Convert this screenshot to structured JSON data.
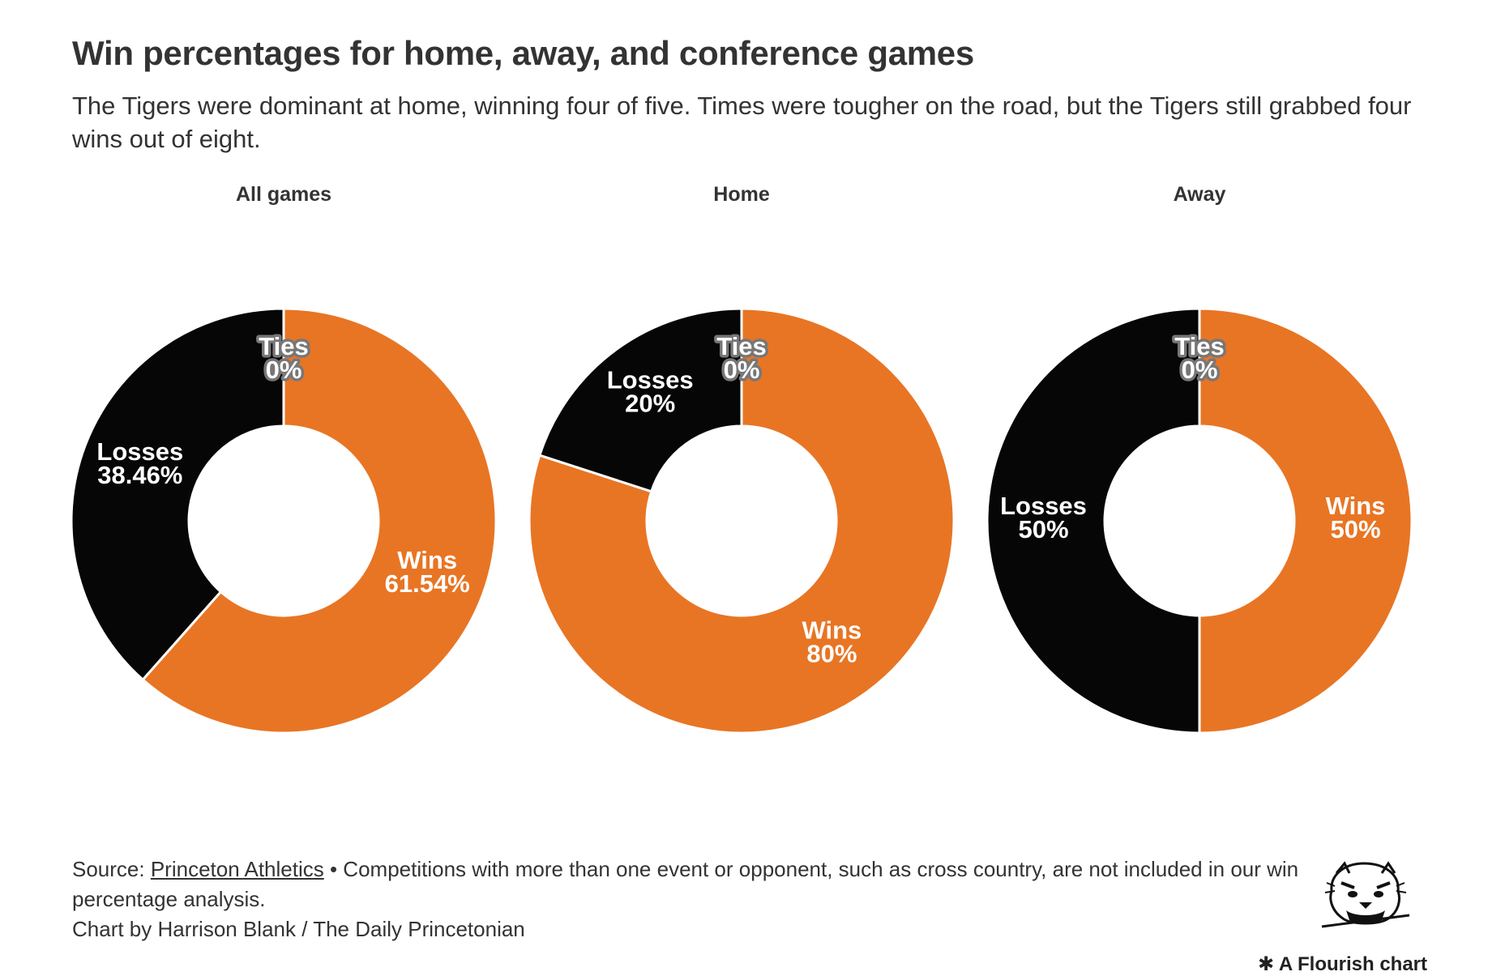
{
  "title": "Win percentages for home, away, and conference games",
  "subtitle": "The Tigers were dominant at home, winning four of five. Times were tougher on the road, but the Tigers still grabbed four wins out of eight.",
  "colors": {
    "wins": "#E87524",
    "losses": "#060606",
    "ties": "#999999",
    "label_text": "#ffffff"
  },
  "chart_data": [
    {
      "type": "pie",
      "title": "All games",
      "slices": [
        {
          "label": "Wins",
          "value": 61.54,
          "display": "61.54%"
        },
        {
          "label": "Losses",
          "value": 38.46,
          "display": "38.46%"
        },
        {
          "label": "Ties",
          "value": 0,
          "display": "0%"
        }
      ]
    },
    {
      "type": "pie",
      "title": "Home",
      "slices": [
        {
          "label": "Wins",
          "value": 80,
          "display": "80%"
        },
        {
          "label": "Losses",
          "value": 20,
          "display": "20%"
        },
        {
          "label": "Ties",
          "value": 0,
          "display": "0%"
        }
      ]
    },
    {
      "type": "pie",
      "title": "Away",
      "slices": [
        {
          "label": "Wins",
          "value": 50,
          "display": "50%"
        },
        {
          "label": "Losses",
          "value": 50,
          "display": "50%"
        },
        {
          "label": "Ties",
          "value": 0,
          "display": "0%"
        }
      ]
    }
  ],
  "footer": {
    "source_prefix": "Source:",
    "source_link": "Princeton Athletics",
    "note": "• Competitions with more than one event or opponent, such as cross country, are not included in our win percentage analysis.",
    "credit": "Chart by Harrison Blank / The Daily Princetonian"
  },
  "logo": {
    "icon": "tiger-head-logo-icon"
  },
  "flourish_label": "✱ A Flourish chart"
}
